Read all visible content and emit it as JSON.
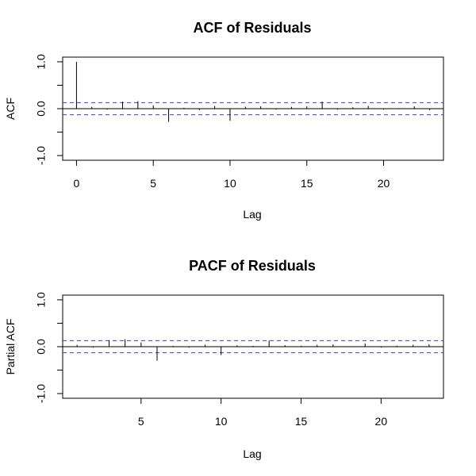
{
  "chart_data": [
    {
      "type": "bar",
      "title": "ACF of Residuals",
      "xlabel": "Lag",
      "ylabel": "ACF",
      "xlim": [
        -0.9,
        23.9
      ],
      "ylim": [
        -1.1,
        1.1
      ],
      "x_ticks": [
        0,
        5,
        10,
        15,
        20
      ],
      "y_ticks": [
        "-1.0",
        "0.0",
        "1.0"
      ],
      "y_ticks_minor": [
        -0.5,
        0.5
      ],
      "ci": 0.13,
      "grid": false,
      "lags": [
        0,
        1,
        2,
        3,
        4,
        5,
        6,
        7,
        8,
        9,
        10,
        11,
        12,
        13,
        14,
        15,
        16,
        17,
        18,
        19,
        20,
        21,
        22,
        23
      ],
      "values": [
        1.0,
        0.04,
        -0.02,
        0.15,
        0.16,
        0.07,
        -0.28,
        0.02,
        -0.03,
        0.06,
        -0.26,
        0.04,
        0.05,
        -0.02,
        0.04,
        0.05,
        0.15,
        -0.02,
        0.03,
        0.06,
        -0.02,
        0.01,
        0.05,
        -0.03
      ]
    },
    {
      "type": "bar",
      "title": "PACF of Residuals",
      "xlabel": "Lag",
      "ylabel": "Partial ACF",
      "xlim": [
        0.1,
        23.9
      ],
      "ylim": [
        -1.1,
        1.1
      ],
      "x_ticks": [
        5,
        10,
        15,
        20
      ],
      "y_ticks": [
        "-1.0",
        "0.0",
        "1.0"
      ],
      "y_ticks_minor": [
        -0.5,
        0.5
      ],
      "ci": 0.13,
      "grid": false,
      "lags": [
        1,
        2,
        3,
        4,
        5,
        6,
        7,
        8,
        9,
        10,
        11,
        12,
        13,
        14,
        15,
        16,
        17,
        18,
        19,
        20,
        21,
        22,
        23
      ],
      "values": [
        0.04,
        -0.02,
        0.14,
        0.16,
        0.09,
        -0.3,
        0.02,
        -0.02,
        0.04,
        -0.18,
        0.03,
        0.02,
        0.13,
        0.03,
        0.02,
        0.04,
        0.05,
        -0.01,
        0.07,
        -0.02,
        0.02,
        0.04,
        0.05
      ]
    }
  ]
}
